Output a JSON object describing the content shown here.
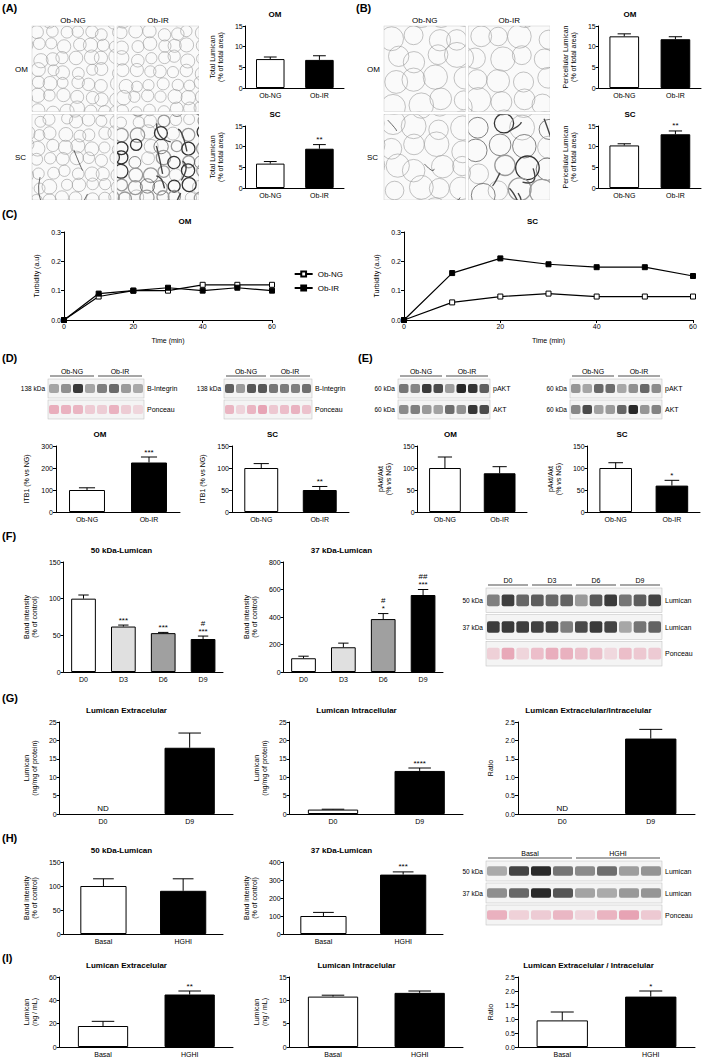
{
  "chart_data": [
    {
      "type": "bar",
      "title": "OM",
      "y_label": "Total Lumican (% of total area)",
      "categories": [
        "Ob-NG",
        "Ob-IR"
      ],
      "values": [
        7.0,
        6.8
      ],
      "errors": [
        0.5,
        1.0
      ],
      "significance": [
        null,
        null
      ],
      "colors": [
        "#ffffff",
        "#000000"
      ],
      "ylim": [
        0,
        15
      ],
      "yticks": [
        0,
        5,
        10,
        15
      ],
      "grid": false
    },
    {
      "type": "bar",
      "title": "SC",
      "y_label": "Total Lumican (% of total area)",
      "categories": [
        "Ob-NG",
        "Ob-IR"
      ],
      "values": [
        5.9,
        9.5
      ],
      "errors": [
        0.5,
        1.0
      ],
      "significance": [
        null,
        [
          "**"
        ]
      ],
      "colors": [
        "#ffffff",
        "#000000"
      ],
      "ylim": [
        0,
        15
      ],
      "yticks": [
        0,
        5,
        10,
        15
      ],
      "grid": false
    },
    {
      "type": "bar",
      "title": "OM",
      "y_label": "Pericellular Lumican (% of total area)",
      "categories": [
        "Ob-NG",
        "Ob-IR"
      ],
      "values": [
        12.5,
        11.8
      ],
      "errors": [
        0.6,
        0.6
      ],
      "significance": [
        null,
        null
      ],
      "colors": [
        "#ffffff",
        "#000000"
      ],
      "ylim": [
        0,
        15
      ],
      "yticks": [
        0,
        5,
        10,
        15
      ],
      "grid": false
    },
    {
      "type": "bar",
      "title": "SC",
      "y_label": "Pericellular Lumican (% of total area)",
      "categories": [
        "Ob-NG",
        "Ob-IR"
      ],
      "values": [
        10.3,
        13.0
      ],
      "errors": [
        0.4,
        0.8
      ],
      "significance": [
        null,
        [
          "**"
        ]
      ],
      "colors": [
        "#ffffff",
        "#000000"
      ],
      "ylim": [
        0,
        15
      ],
      "yticks": [
        0,
        5,
        10,
        15
      ],
      "grid": false
    },
    {
      "type": "line",
      "title": "OM",
      "x_label": "Time (min)",
      "y_label": "Turbidity (a.u)",
      "x": [
        0,
        10,
        20,
        30,
        40,
        50,
        60
      ],
      "series": [
        {
          "name": "Ob-NG",
          "color": "#000000",
          "marker": "open-square",
          "values": [
            0,
            0.08,
            0.1,
            0.1,
            0.12,
            0.12,
            0.12
          ]
        },
        {
          "name": "Ob-IR",
          "color": "#000000",
          "marker": "square",
          "values": [
            0,
            0.09,
            0.1,
            0.11,
            0.1,
            0.11,
            0.1
          ]
        }
      ],
      "xlim": [
        0,
        60
      ],
      "xticks": [
        0,
        20,
        40,
        60
      ],
      "ylim": [
        0,
        0.3
      ],
      "yticks": [
        {
          "value": 0,
          "label": "0.0"
        },
        0.1,
        0.2,
        0.3
      ],
      "grid": false,
      "legend": "right"
    },
    {
      "type": "line",
      "title": "SC",
      "x_label": "Time (min)",
      "y_label": "Turbidity (a.u)",
      "x": [
        0,
        10,
        20,
        30,
        40,
        50,
        60
      ],
      "series": [
        {
          "name": "Ob-NG",
          "color": "#000000",
          "marker": "open-square",
          "values": [
            0,
            0.06,
            0.08,
            0.09,
            0.08,
            0.08,
            0.08
          ]
        },
        {
          "name": "Ob-IR",
          "color": "#000000",
          "marker": "square",
          "values": [
            0,
            0.16,
            0.21,
            0.19,
            0.18,
            0.18,
            0.15
          ]
        }
      ],
      "xlim": [
        0,
        60
      ],
      "xticks": [
        0,
        20,
        40,
        60
      ],
      "ylim": [
        0,
        0.3
      ],
      "yticks": [
        {
          "value": 0,
          "label": "0.0"
        },
        0.1,
        0.2,
        0.3
      ],
      "grid": false
    },
    {
      "type": "bar",
      "title": "OM",
      "y_label": "ITB1 (% vs NG)",
      "categories": [
        "Ob-NG",
        "Ob-IR"
      ],
      "values": [
        100,
        225
      ],
      "errors": [
        10,
        25
      ],
      "significance": [
        null,
        [
          "***"
        ]
      ],
      "colors": [
        "#ffffff",
        "#000000"
      ],
      "ylim": [
        0,
        300
      ],
      "yticks": [
        0,
        100,
        200,
        300
      ],
      "grid": false
    },
    {
      "type": "bar",
      "title": "SC",
      "y_label": "ITB1 (% vs NG)",
      "categories": [
        "Ob-NG",
        "Ob-IR"
      ],
      "values": [
        100,
        50
      ],
      "errors": [
        10,
        8
      ],
      "significance": [
        null,
        [
          "**"
        ]
      ],
      "colors": [
        "#ffffff",
        "#000000"
      ],
      "ylim": [
        0,
        150
      ],
      "yticks": [
        0,
        50,
        100,
        150
      ],
      "grid": false
    },
    {
      "type": "bar",
      "title": "OM",
      "y_label": "pAkt/Akt (% vs NG)",
      "categories": [
        "Ob-NG",
        "Ob-IR"
      ],
      "values": [
        100,
        88
      ],
      "errors": [
        25,
        15
      ],
      "significance": [
        null,
        null
      ],
      "colors": [
        "#ffffff",
        "#000000"
      ],
      "ylim": [
        0,
        150
      ],
      "yticks": [
        0,
        50,
        100,
        150
      ],
      "grid": false
    },
    {
      "type": "bar",
      "title": "SC",
      "y_label": "pAkt/Akt (% vs NG)",
      "categories": [
        "Ob-NG",
        "Ob-IR"
      ],
      "values": [
        100,
        60
      ],
      "errors": [
        12,
        12
      ],
      "significance": [
        null,
        [
          "*"
        ]
      ],
      "colors": [
        "#ffffff",
        "#000000"
      ],
      "ylim": [
        0,
        150
      ],
      "yticks": [
        0,
        50,
        100,
        150
      ],
      "grid": false
    },
    {
      "type": "bar",
      "title": "50 kDa-Lumican",
      "y_label": "Band intensity (% of control)",
      "categories": [
        "D0",
        "D3",
        "D6",
        "D9"
      ],
      "values": [
        100,
        62,
        53,
        45
      ],
      "errors": [
        5,
        2,
        1,
        4
      ],
      "significance": [
        null,
        [
          "***"
        ],
        [
          "***"
        ],
        [
          "#",
          "***"
        ]
      ],
      "colors": [
        "#ffffff",
        "#e0e0e0",
        "#a0a0a0",
        "#000000"
      ],
      "ylim": [
        0,
        150
      ],
      "yticks": [
        0,
        50,
        100,
        150
      ],
      "grid": false
    },
    {
      "type": "bar",
      "title": "37 kDa-Lumican",
      "y_label": "Band intensity (% of control)",
      "categories": [
        "D0",
        "D3",
        "D6",
        "D9"
      ],
      "values": [
        100,
        180,
        385,
        560
      ],
      "errors": [
        15,
        30,
        40,
        40
      ],
      "significance": [
        null,
        null,
        [
          "#",
          "*"
        ],
        [
          "##",
          "***"
        ]
      ],
      "colors": [
        "#ffffff",
        "#e0e0e0",
        "#a0a0a0",
        "#000000"
      ],
      "ylim": [
        0,
        800
      ],
      "yticks": [
        0,
        200,
        400,
        600,
        800
      ],
      "grid": false
    },
    {
      "type": "bar",
      "title": "Lumican Extracelular",
      "y_label": "Lumican (ng/mg of protein)",
      "categories": [
        "D0",
        "D9"
      ],
      "values": [
        null,
        18
      ],
      "value_labels": [
        "ND",
        null
      ],
      "errors": [
        null,
        4
      ],
      "significance": [
        null,
        null
      ],
      "colors": [
        "#ffffff",
        "#000000"
      ],
      "ylim": [
        0,
        25
      ],
      "yticks": [
        0,
        5,
        10,
        15,
        20,
        25
      ],
      "grid": false
    },
    {
      "type": "bar",
      "title": "Lumican Intracellular",
      "y_label": "Lumican (ng/mg of protein)",
      "categories": [
        "D0",
        "D9"
      ],
      "values": [
        1.2,
        11.7
      ],
      "errors": [
        0.1,
        0.8
      ],
      "significance": [
        null,
        [
          "****"
        ]
      ],
      "colors": [
        "#ffffff",
        "#000000"
      ],
      "ylim": [
        0,
        25
      ],
      "yticks": [
        0,
        5,
        10,
        15,
        20,
        25
      ],
      "grid": false
    },
    {
      "type": "bar",
      "title": "Lumican Extracelular/Intracelular",
      "y_label": "Ratio",
      "categories": [
        "D0",
        "D9"
      ],
      "values": [
        null,
        2.05
      ],
      "value_labels": [
        "ND",
        null
      ],
      "errors": [
        null,
        0.25
      ],
      "significance": [
        null,
        null
      ],
      "colors": [
        "#ffffff",
        "#000000"
      ],
      "ylim": [
        0,
        2.5
      ],
      "yticks": [
        {
          "value": 0,
          "label": "0.0"
        },
        0.5,
        {
          "value": 1,
          "label": "1.0"
        },
        1.5,
        {
          "value": 2,
          "label": "2.0"
        },
        2.5
      ],
      "grid": false
    },
    {
      "type": "bar",
      "title": "50 kDa-Lumican",
      "y_label": "Band intensity (% of control)",
      "categories": [
        "Basal",
        "HGHI"
      ],
      "values": [
        100,
        90
      ],
      "errors": [
        15,
        25
      ],
      "significance": [
        null,
        null
      ],
      "colors": [
        "#ffffff",
        "#000000"
      ],
      "ylim": [
        0,
        150
      ],
      "yticks": [
        0,
        50,
        100,
        150
      ],
      "grid": false
    },
    {
      "type": "bar",
      "title": "37 kDa-Lumican",
      "y_label": "Band intensity (% of control)",
      "categories": [
        "Basal",
        "HGHI"
      ],
      "values": [
        100,
        330
      ],
      "errors": [
        20,
        15
      ],
      "significance": [
        null,
        [
          "***"
        ]
      ],
      "colors": [
        "#ffffff",
        "#000000"
      ],
      "ylim": [
        0,
        400
      ],
      "yticks": [
        0,
        100,
        200,
        300,
        400
      ],
      "grid": false
    },
    {
      "type": "bar",
      "title": "Lumican Extracelular",
      "y_label": "Lumican (ng / mL)",
      "categories": [
        "Basal",
        "HGHI"
      ],
      "values": [
        18,
        45
      ],
      "errors": [
        4,
        3
      ],
      "significance": [
        null,
        [
          "**"
        ]
      ],
      "colors": [
        "#ffffff",
        "#000000"
      ],
      "ylim": [
        0,
        60
      ],
      "yticks": [
        0,
        20,
        40,
        60
      ],
      "grid": false
    },
    {
      "type": "bar",
      "title": "Lumican Intracelular",
      "y_label": "Lumican (ng / mL)",
      "categories": [
        "Basal",
        "HGHI"
      ],
      "values": [
        10.8,
        11.6
      ],
      "errors": [
        0.3,
        0.4
      ],
      "significance": [
        null,
        null
      ],
      "colors": [
        "#ffffff",
        "#000000"
      ],
      "ylim": [
        0,
        15
      ],
      "yticks": [
        0,
        5,
        10,
        15
      ],
      "grid": false
    },
    {
      "type": "bar",
      "title": "Lumican Extracelular / Intracelular",
      "y_label": "Ratio",
      "categories": [
        "Basal",
        "HGHI"
      ],
      "values": [
        0.95,
        1.8
      ],
      "errors": [
        0.3,
        0.2
      ],
      "significance": [
        null,
        [
          "*"
        ]
      ],
      "colors": [
        "#ffffff",
        "#000000"
      ],
      "ylim": [
        0,
        2.5
      ],
      "yticks": [
        {
          "value": 0,
          "label": "0.0"
        },
        0.5,
        {
          "value": 1,
          "label": "1.0"
        },
        1.5,
        {
          "value": 2,
          "label": "2.0"
        },
        2.5
      ],
      "grid": false
    }
  ],
  "panel_labels": [
    "(A)",
    "(B)",
    "(C)",
    "(D)",
    "(E)",
    "(F)",
    "(G)",
    "(H)",
    "(I)"
  ],
  "micrographs": [
    {
      "columns": [
        "Ob-NG",
        "Ob-IR"
      ],
      "rows": [
        "OM",
        "SC"
      ]
    },
    {
      "columns": [
        "Ob-NG",
        "Ob-IR"
      ],
      "rows": [
        "OM",
        "SC"
      ]
    }
  ],
  "blots": [
    {
      "groups": [
        "Ob-NG",
        "Ob-IR"
      ],
      "rows": [
        {
          "label": "B-Integrin",
          "size": "138 kDa",
          "color": "#222222"
        },
        {
          "label": "Ponceau",
          "color": "#e7a3b4"
        }
      ]
    },
    {
      "groups": [
        "Ob-NG",
        "Ob-IR"
      ],
      "rows": [
        {
          "label": "B-Integrin",
          "size": "138 kDa",
          "color": "#222222"
        },
        {
          "label": "Ponceau",
          "color": "#e7a3b4"
        }
      ]
    },
    {
      "groups": [
        "Ob-NG",
        "Ob-IR"
      ],
      "rows": [
        {
          "label": "pAKT",
          "size": "60 kDa",
          "color": "#222222"
        },
        {
          "label": "AKT",
          "size": "60 kDa",
          "color": "#222222"
        }
      ]
    },
    {
      "groups": [
        "Ob-NG",
        "Ob-IR"
      ],
      "rows": [
        {
          "label": "pAKT",
          "size": "60 kDa",
          "color": "#222222"
        },
        {
          "label": "AKT",
          "size": "60 kDa",
          "color": "#222222"
        }
      ]
    },
    {
      "groups": [
        "D0",
        "D3",
        "D6",
        "D9"
      ],
      "rows": [
        {
          "label": "Lumican",
          "size": "50 kDa",
          "color": "#222222"
        },
        {
          "label": "Lumican",
          "size": "37 kDa",
          "color": "#222222"
        },
        {
          "label": "Ponceau",
          "color": "#e7a3b4"
        }
      ]
    },
    {
      "groups": [
        "Basal",
        "HGHI"
      ],
      "rows": [
        {
          "label": "Lumican",
          "size": "50 kDa",
          "color": "#222222"
        },
        {
          "label": "Lumican",
          "size": "37 kDa",
          "color": "#222222"
        },
        {
          "label": "Ponceau",
          "color": "#e7a3b4"
        }
      ]
    }
  ]
}
